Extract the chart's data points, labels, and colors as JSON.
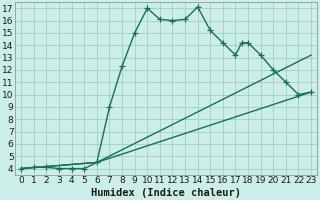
{
  "title": "",
  "xlabel": "Humidex (Indice chaleur)",
  "ylabel": "",
  "bg_color": "#cceee8",
  "grid_color": "#9ecec8",
  "line_color": "#1a6e5a",
  "xlim": [
    -0.5,
    23.5
  ],
  "ylim": [
    3.5,
    17.5
  ],
  "xticks": [
    0,
    1,
    2,
    3,
    4,
    5,
    6,
    7,
    8,
    9,
    10,
    11,
    12,
    13,
    14,
    15,
    16,
    17,
    18,
    19,
    20,
    21,
    22,
    23
  ],
  "yticks": [
    4,
    5,
    6,
    7,
    8,
    9,
    10,
    11,
    12,
    13,
    14,
    15,
    16,
    17
  ],
  "series1_x": [
    0,
    1,
    2,
    3,
    4,
    5,
    6,
    7,
    8,
    9,
    10,
    11,
    12,
    13,
    14,
    15,
    16,
    17,
    17.5,
    18,
    19,
    20,
    21,
    22,
    23
  ],
  "series1_y": [
    4,
    4.1,
    4.1,
    4,
    4,
    4,
    4.5,
    9,
    12.3,
    15,
    17,
    16.1,
    16,
    16.1,
    17.1,
    15.2,
    14.2,
    13.2,
    14.2,
    14.2,
    13.2,
    12,
    11,
    10,
    10.2
  ],
  "series2_x": [
    0,
    6,
    23
  ],
  "series2_y": [
    4,
    4.5,
    13.2
  ],
  "series3_x": [
    0,
    6,
    23
  ],
  "series3_y": [
    4,
    4.5,
    10.2
  ],
  "marker_size": 4,
  "line_width": 1.0,
  "font_size": 6.5,
  "xlabel_fontsize": 7.5
}
